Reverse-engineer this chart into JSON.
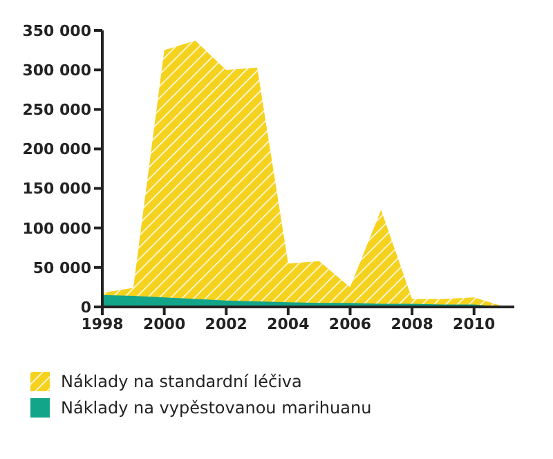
{
  "chart_data": {
    "type": "area",
    "x": [
      1998,
      1999,
      2000,
      2001,
      2002,
      2003,
      2004,
      2005,
      2006,
      2007,
      2008,
      2009,
      2010,
      2011
    ],
    "series": [
      {
        "name": "Náklady na standardní léčiva",
        "color": "#f5d21e",
        "values": [
          18000,
          24000,
          325000,
          337000,
          300000,
          303000,
          55000,
          58000,
          25000,
          123000,
          10000,
          10000,
          12000,
          0
        ]
      },
      {
        "name": "Náklady na vypěstovanou marihuanu",
        "color": "#12a58a",
        "values": [
          15000,
          14000,
          12000,
          10000,
          8000,
          7000,
          6000,
          5000,
          5000,
          4000,
          4000,
          3000,
          3000,
          0
        ]
      }
    ],
    "xlim": [
      1998,
      2011.3
    ],
    "xticks": [
      1998,
      2000,
      2002,
      2004,
      2006,
      2008,
      2010
    ],
    "ylim": [
      0,
      350000
    ],
    "yticks": [
      0,
      {
        "value": 50000,
        "label": "50 000"
      },
      {
        "value": 100000,
        "label": "100 000"
      },
      {
        "value": 150000,
        "label": "150 000"
      },
      {
        "value": 200000,
        "label": "200 000"
      },
      {
        "value": 250000,
        "label": "250 000"
      },
      {
        "value": 300000,
        "label": "300 000"
      },
      {
        "value": 350000,
        "label": "350 000"
      }
    ],
    "grid": false,
    "legend": "bottom"
  }
}
